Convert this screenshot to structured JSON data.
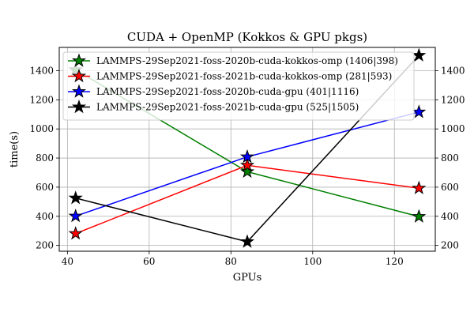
{
  "chart_data": {
    "type": "line",
    "title": "CUDA + OpenMP (Kokkos & GPU pkgs)",
    "xlabel": "GPUs",
    "ylabel": "time(s)",
    "xlim": [
      38,
      130
    ],
    "ylim": [
      160,
      1560
    ],
    "xticks": [
      40,
      60,
      80,
      100,
      120
    ],
    "yticks": [
      200,
      400,
      600,
      800,
      1000,
      1200,
      1400
    ],
    "right_axis_ticks": true,
    "grid": true,
    "legend_position": "upper-left",
    "marker": "star",
    "x": [
      42,
      84,
      126
    ],
    "series": [
      {
        "name": "LAMMPS-29Sep2021-foss-2020b-cuda-kokkos-omp (1406|398)",
        "color": "#008000",
        "values": [
          1406,
          706,
          398
        ]
      },
      {
        "name": "LAMMPS-29Sep2021-foss-2021b-cuda-kokkos-omp (281|593)",
        "color": "#ff0000",
        "values": [
          281,
          750,
          593
        ]
      },
      {
        "name": "LAMMPS-29Sep2021-foss-2020b-cuda-gpu (401|1116)",
        "color": "#0000ff",
        "values": [
          401,
          808,
          1116
        ]
      },
      {
        "name": "LAMMPS-29Sep2021-foss-2021b-cuda-gpu (525|1505)",
        "color": "#000000",
        "values": [
          525,
          225,
          1505
        ]
      }
    ]
  }
}
